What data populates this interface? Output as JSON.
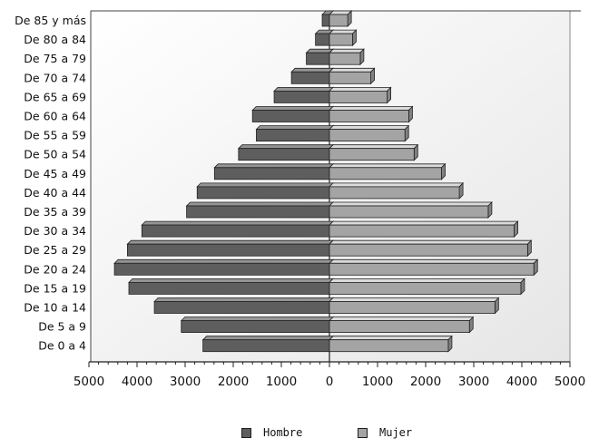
{
  "chart_data": {
    "type": "bar",
    "orientation": "horizontal",
    "layout": "population-pyramid",
    "categories": [
      "De 0 a 4",
      "De 5 a 9",
      "De 10 a 14",
      "De 15 a 19",
      "De 20 a 24",
      "De 25 a 29",
      "De 30 a 34",
      "De 35 a 39",
      "De 40 a 44",
      "De 45 a 49",
      "De 50 a 54",
      "De 55 a 59",
      "De 60 a 64",
      "De 65 a 69",
      "De 70 a 74",
      "De 75 a 79",
      "De 80 a 84",
      "De 85 y más"
    ],
    "series": [
      {
        "name": "Hombre",
        "side": "left",
        "color": "#5e5e5e",
        "values": [
          2630,
          3080,
          3640,
          4170,
          4470,
          4200,
          3900,
          2970,
          2750,
          2390,
          1890,
          1520,
          1600,
          1150,
          790,
          480,
          290,
          150
        ]
      },
      {
        "name": "Mujer",
        "side": "right",
        "color": "#a4a4a4",
        "values": [
          2470,
          2910,
          3440,
          3980,
          4250,
          4120,
          3840,
          3300,
          2700,
          2330,
          1760,
          1570,
          1650,
          1200,
          860,
          640,
          480,
          380
        ]
      }
    ],
    "xlim": [
      -5000,
      5000
    ],
    "xticks": [
      "5000",
      "4000",
      "3000",
      "2000",
      "1000",
      "0",
      "1000",
      "2000",
      "3000",
      "4000",
      "5000"
    ],
    "legend_position": "bottom",
    "grid": false
  }
}
